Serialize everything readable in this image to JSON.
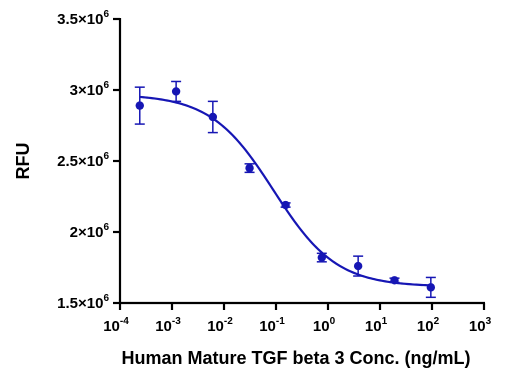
{
  "chart_data": {
    "type": "scatter",
    "xlabel": "Human Mature TGF beta 3 Conc. (ng/mL)",
    "ylabel": "RFU",
    "x_scale": "log",
    "xlim": [
      0.0001,
      1000
    ],
    "ylim": [
      1500000,
      3500000
    ],
    "x_ticks": [
      {
        "base": "10",
        "exp": "-4",
        "value": 0.0001
      },
      {
        "base": "10",
        "exp": "-3",
        "value": 0.001
      },
      {
        "base": "10",
        "exp": "-2",
        "value": 0.01
      },
      {
        "base": "10",
        "exp": "-1",
        "value": 0.1
      },
      {
        "base": "10",
        "exp": "0",
        "value": 1
      },
      {
        "base": "10",
        "exp": "1",
        "value": 10
      },
      {
        "base": "10",
        "exp": "2",
        "value": 100
      },
      {
        "base": "10",
        "exp": "3",
        "value": 1000
      }
    ],
    "y_ticks": [
      {
        "mant": "1.5",
        "times": "×10",
        "exp": "6",
        "value": 1500000
      },
      {
        "mant": "2",
        "times": "×10",
        "exp": "6",
        "value": 2000000
      },
      {
        "mant": "2.5",
        "times": "×10",
        "exp": "6",
        "value": 2500000
      },
      {
        "mant": "3",
        "times": "×10",
        "exp": "6",
        "value": 3000000
      },
      {
        "mant": "3.5",
        "times": "×10",
        "exp": "6",
        "value": 3500000
      }
    ],
    "points": [
      {
        "x": 0.00024,
        "y": 2890000,
        "err": 130000
      },
      {
        "x": 0.0012,
        "y": 2990000,
        "err": 70000
      },
      {
        "x": 0.0061,
        "y": 2810000,
        "err": 110000
      },
      {
        "x": 0.031,
        "y": 2450000,
        "err": 30000
      },
      {
        "x": 0.153,
        "y": 2190000,
        "err": 15000
      },
      {
        "x": 0.76,
        "y": 1820000,
        "err": 30000
      },
      {
        "x": 3.8,
        "y": 1760000,
        "err": 70000
      },
      {
        "x": 19,
        "y": 1660000,
        "err": 15000
      },
      {
        "x": 95,
        "y": 1610000,
        "err": 70000
      }
    ],
    "fit": {
      "model": "4PL",
      "top": 2970000,
      "bottom": 1615000,
      "ec50": 0.09,
      "hill": 0.72
    },
    "color": "#1616b4",
    "grid": false
  }
}
